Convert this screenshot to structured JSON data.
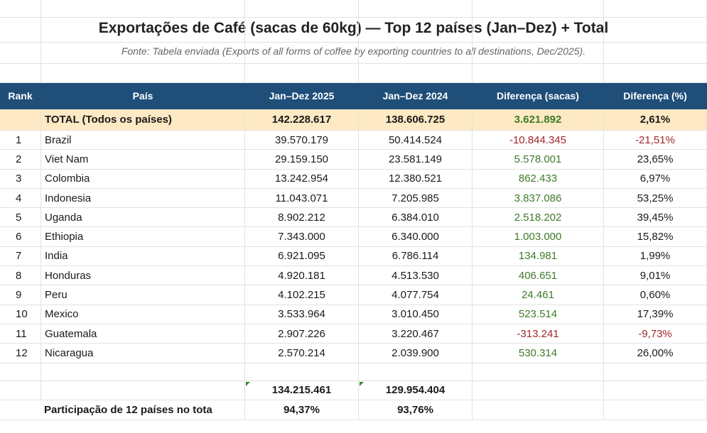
{
  "title": "Exportações de Café (sacas de 60kg) — Top 12 países (Jan–Dez) + Total",
  "subtitle": "Fonte: Tabela enviada (Exports of all forms of coffee by exporting countries to all destinations, Dec/2025).",
  "table": {
    "headers": [
      "Rank",
      "País",
      "Jan–Dez 2025",
      "Jan–Dez 2024",
      "Diferença (sacas)",
      "Diferença (%)"
    ],
    "total": [
      "",
      "TOTAL (Todos os países)",
      "142.228.617",
      "138.606.725",
      "3.621.892",
      "2,61%"
    ],
    "rows": [
      [
        "1",
        "Brazil",
        "39.570.179",
        "50.414.524",
        "-10.844.345",
        "-21,51%"
      ],
      [
        "2",
        "Viet Nam",
        "29.159.150",
        "23.581.149",
        "5.578.001",
        "23,65%"
      ],
      [
        "3",
        "Colombia",
        "13.242.954",
        "12.380.521",
        "862.433",
        "6,97%"
      ],
      [
        "4",
        "Indonesia",
        "11.043.071",
        "7.205.985",
        "3.837.086",
        "53,25%"
      ],
      [
        "5",
        "Uganda",
        "8.902.212",
        "6.384.010",
        "2.518.202",
        "39,45%"
      ],
      [
        "6",
        "Ethiopia",
        "7.343.000",
        "6.340.000",
        "1.003.000",
        "15,82%"
      ],
      [
        "7",
        "India",
        "6.921.095",
        "6.786.114",
        "134.981",
        "1,99%"
      ],
      [
        "8",
        "Honduras",
        "4.920.181",
        "4.513.530",
        "406.651",
        "9,01%"
      ],
      [
        "9",
        "Peru",
        "4.102.215",
        "4.077.754",
        "24.461",
        "0,60%"
      ],
      [
        "10",
        "Mexico",
        "3.533.964",
        "3.010.450",
        "523.514",
        "17,39%"
      ],
      [
        "11",
        "Guatemala",
        "2.907.226",
        "3.220.467",
        "-313.241",
        "-9,73%"
      ],
      [
        "12",
        "Nicaragua",
        "2.570.214",
        "2.039.900",
        "530.314",
        "26,00%"
      ]
    ],
    "sums": [
      "134.215.461",
      "129.954.404"
    ],
    "share_label": "Participação de 12 países no tota",
    "shares": [
      "94,37%",
      "93,76%"
    ]
  }
}
